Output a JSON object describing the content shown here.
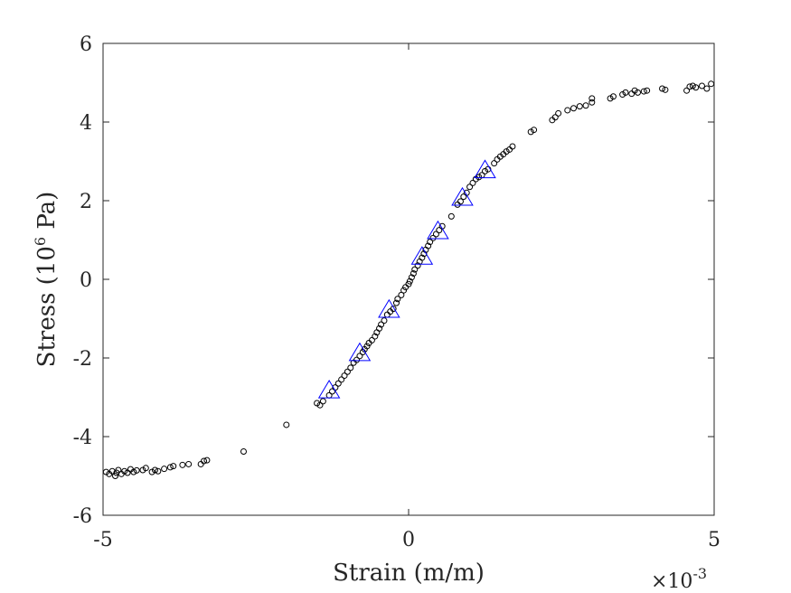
{
  "chart_data": {
    "type": "scatter",
    "xlabel": "Strain (m/m)",
    "ylabel_base": "Stress (10",
    "ylabel_exp": "6",
    "ylabel_unit": " Pa)",
    "x_multiplier_base": "×10",
    "x_multiplier_exp": "-3",
    "xlim": [
      -5,
      5
    ],
    "ylim": [
      -6,
      6
    ],
    "xticks": [
      -5,
      0,
      5
    ],
    "yticks": [
      -6,
      -4,
      -2,
      0,
      2,
      4,
      6
    ],
    "xtick_labels": [
      "-5",
      "0",
      "5"
    ],
    "ytick_labels": [
      "-6",
      "-4",
      "-2",
      "0",
      "2",
      "4",
      "6"
    ],
    "grid": false,
    "series": [
      {
        "marker": "circle",
        "color": "#000000",
        "points": [
          [
            -4.95,
            -4.9
          ],
          [
            -4.9,
            -4.95
          ],
          [
            -4.85,
            -4.88
          ],
          [
            -4.8,
            -5.0
          ],
          [
            -4.78,
            -4.92
          ],
          [
            -4.75,
            -4.85
          ],
          [
            -4.7,
            -4.95
          ],
          [
            -4.65,
            -4.88
          ],
          [
            -4.6,
            -4.92
          ],
          [
            -4.55,
            -4.83
          ],
          [
            -4.5,
            -4.9
          ],
          [
            -4.45,
            -4.86
          ],
          [
            -4.35,
            -4.85
          ],
          [
            -4.3,
            -4.8
          ],
          [
            -4.2,
            -4.9
          ],
          [
            -4.15,
            -4.85
          ],
          [
            -4.1,
            -4.88
          ],
          [
            -4.0,
            -4.82
          ],
          [
            -3.9,
            -4.78
          ],
          [
            -3.85,
            -4.75
          ],
          [
            -3.7,
            -4.72
          ],
          [
            -3.6,
            -4.7
          ],
          [
            -3.4,
            -4.7
          ],
          [
            -3.35,
            -4.62
          ],
          [
            -3.3,
            -4.6
          ],
          [
            -2.7,
            -4.38
          ],
          [
            -2.0,
            -3.7
          ],
          [
            -1.5,
            -3.15
          ],
          [
            -1.45,
            -3.2
          ],
          [
            -1.4,
            -3.1
          ],
          [
            -1.3,
            -2.95
          ],
          [
            -1.25,
            -2.85
          ],
          [
            -1.2,
            -2.75
          ],
          [
            -1.15,
            -2.65
          ],
          [
            -1.1,
            -2.55
          ],
          [
            -1.05,
            -2.45
          ],
          [
            -1.0,
            -2.35
          ],
          [
            -0.95,
            -2.25
          ],
          [
            -0.9,
            -2.12
          ],
          [
            -0.85,
            -2.05
          ],
          [
            -0.8,
            -1.95
          ],
          [
            -0.75,
            -1.85
          ],
          [
            -0.72,
            -1.78
          ],
          [
            -0.68,
            -1.7
          ],
          [
            -0.65,
            -1.62
          ],
          [
            -0.6,
            -1.55
          ],
          [
            -0.55,
            -1.45
          ],
          [
            -0.52,
            -1.35
          ],
          [
            -0.48,
            -1.25
          ],
          [
            -0.45,
            -1.15
          ],
          [
            -0.4,
            -1.05
          ],
          [
            -0.35,
            -0.9
          ],
          [
            -0.3,
            -0.82
          ],
          [
            -0.25,
            -0.75
          ],
          [
            -0.2,
            -0.6
          ],
          [
            -0.18,
            -0.5
          ],
          [
            -0.12,
            -0.4
          ],
          [
            -0.08,
            -0.28
          ],
          [
            -0.05,
            -0.2
          ],
          [
            0.0,
            -0.12
          ],
          [
            0.02,
            -0.05
          ],
          [
            0.05,
            0.05
          ],
          [
            0.08,
            0.15
          ],
          [
            0.1,
            0.25
          ],
          [
            0.15,
            0.35
          ],
          [
            0.18,
            0.45
          ],
          [
            0.22,
            0.55
          ],
          [
            0.25,
            0.65
          ],
          [
            0.28,
            0.75
          ],
          [
            0.32,
            0.85
          ],
          [
            0.35,
            0.95
          ],
          [
            0.4,
            1.05
          ],
          [
            0.45,
            1.15
          ],
          [
            0.5,
            1.25
          ],
          [
            0.55,
            1.35
          ],
          [
            0.7,
            1.6
          ],
          [
            0.8,
            1.9
          ],
          [
            0.85,
            1.98
          ],
          [
            0.9,
            2.1
          ],
          [
            0.95,
            2.2
          ],
          [
            1.0,
            2.35
          ],
          [
            1.05,
            2.45
          ],
          [
            1.1,
            2.55
          ],
          [
            1.15,
            2.6
          ],
          [
            1.2,
            2.65
          ],
          [
            1.25,
            2.75
          ],
          [
            1.3,
            2.8
          ],
          [
            1.4,
            2.95
          ],
          [
            1.45,
            3.05
          ],
          [
            1.5,
            3.12
          ],
          [
            1.55,
            3.18
          ],
          [
            1.6,
            3.25
          ],
          [
            1.65,
            3.3
          ],
          [
            1.7,
            3.38
          ],
          [
            2.0,
            3.75
          ],
          [
            2.05,
            3.8
          ],
          [
            2.35,
            4.05
          ],
          [
            2.4,
            4.12
          ],
          [
            2.45,
            4.22
          ],
          [
            2.6,
            4.3
          ],
          [
            2.7,
            4.35
          ],
          [
            2.8,
            4.4
          ],
          [
            2.9,
            4.42
          ],
          [
            3.0,
            4.5
          ],
          [
            3.0,
            4.6
          ],
          [
            3.3,
            4.6
          ],
          [
            3.35,
            4.65
          ],
          [
            3.5,
            4.7
          ],
          [
            3.55,
            4.75
          ],
          [
            3.65,
            4.72
          ],
          [
            3.7,
            4.8
          ],
          [
            3.75,
            4.75
          ],
          [
            3.85,
            4.78
          ],
          [
            3.9,
            4.8
          ],
          [
            4.15,
            4.85
          ],
          [
            4.2,
            4.82
          ],
          [
            4.55,
            4.8
          ],
          [
            4.6,
            4.9
          ],
          [
            4.65,
            4.92
          ],
          [
            4.7,
            4.88
          ],
          [
            4.8,
            4.92
          ],
          [
            4.88,
            4.85
          ],
          [
            4.95,
            4.97
          ]
        ]
      },
      {
        "marker": "triangle",
        "color": "#0000ff",
        "points": [
          [
            -1.3,
            -2.85
          ],
          [
            -0.8,
            -1.9
          ],
          [
            -0.32,
            -0.8
          ],
          [
            0.22,
            0.55
          ],
          [
            0.48,
            1.2
          ],
          [
            0.88,
            2.05
          ],
          [
            1.25,
            2.75
          ]
        ]
      }
    ]
  }
}
